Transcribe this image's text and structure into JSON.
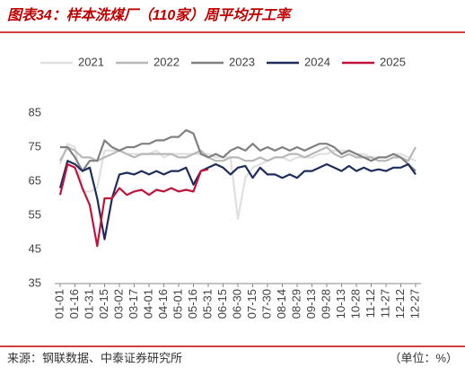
{
  "chart_data": {
    "type": "line",
    "title": "图表34：样本洗煤厂（110家）周平均开工率",
    "source": "来源：钢联数据、中泰证券研究所",
    "note": "（单位：%）",
    "categories": [
      "01-01",
      null,
      "01-16",
      null,
      "01-31",
      null,
      "02-15",
      null,
      "03-02",
      null,
      "03-17",
      null,
      "04-01",
      null,
      "04-16",
      null,
      "05-01",
      null,
      "05-16",
      null,
      "05-31",
      null,
      "06-15",
      null,
      "06-30",
      null,
      "07-15",
      null,
      "07-30",
      null,
      "08-14",
      null,
      "08-29",
      null,
      "09-13",
      null,
      "09-28",
      null,
      "10-13",
      null,
      "10-28",
      null,
      "11-12",
      null,
      "11-27",
      null,
      "12-12",
      null,
      "12-27"
    ],
    "series": [
      {
        "name": "2021",
        "color": "#e0e0e0",
        "values": [
          70,
          76,
          75,
          62,
          62,
          63,
          74,
          74,
          74,
          73,
          73,
          73,
          73,
          74,
          72,
          73,
          73,
          73,
          73,
          73,
          73,
          72,
          72,
          72,
          54,
          66,
          69,
          70,
          71,
          72,
          72,
          71,
          72,
          72,
          72,
          73,
          73,
          74,
          74,
          74,
          73,
          73,
          72,
          72,
          72,
          73,
          73,
          72,
          71
        ]
      },
      {
        "name": "2022",
        "color": "#b8b8b8",
        "values": [
          71,
          75,
          74,
          72,
          72,
          71,
          72,
          73,
          74,
          73,
          72,
          73,
          73,
          73,
          73,
          73,
          72,
          72,
          73,
          74,
          72,
          71,
          71,
          72,
          72,
          71,
          71,
          72,
          71,
          72,
          72,
          73,
          73,
          72,
          73,
          74,
          75,
          73,
          72,
          73,
          72,
          72,
          72,
          71,
          71,
          72,
          72,
          71,
          75
        ]
      },
      {
        "name": "2023",
        "color": "#808080",
        "values": [
          75,
          75,
          72,
          68,
          71,
          71,
          77,
          75,
          74,
          75,
          75,
          76,
          76,
          77,
          77,
          78,
          78,
          80,
          79,
          73,
          72,
          73,
          72,
          74,
          75,
          74,
          76,
          74,
          75,
          74,
          75,
          74,
          75,
          74,
          75,
          76,
          76,
          75,
          73,
          74,
          73,
          72,
          71,
          72,
          72,
          73,
          72,
          70,
          68
        ]
      },
      {
        "name": "2024",
        "color": "#1f2d5c",
        "values": [
          63,
          71,
          70,
          68,
          69,
          60,
          48,
          60,
          67,
          67.5,
          67,
          68,
          67,
          68,
          67,
          68,
          68,
          69,
          64,
          68,
          69,
          70,
          69,
          67,
          69,
          69.5,
          66,
          69,
          67,
          67,
          66,
          67,
          66,
          68,
          68,
          69,
          70,
          69,
          68,
          69.5,
          68,
          69,
          68,
          68.5,
          68,
          69,
          69,
          70,
          67
        ]
      },
      {
        "name": "2025",
        "color": "#c0143c",
        "values": [
          61,
          70,
          69,
          63,
          58,
          46,
          60,
          60,
          63,
          61,
          62,
          62.5,
          61,
          62.5,
          62,
          63,
          62,
          62.5,
          62,
          68,
          68.5,
          null,
          null,
          null,
          null,
          null,
          null,
          null,
          null,
          null,
          null,
          null,
          null,
          null,
          null,
          null,
          null,
          null,
          null,
          null,
          null,
          null,
          null,
          null,
          null,
          null,
          null,
          null,
          null
        ]
      }
    ],
    "ylim": [
      35,
      85
    ],
    "yticks": [
      35,
      45,
      55,
      65,
      75,
      85
    ],
    "grid": false,
    "legend": "top"
  }
}
